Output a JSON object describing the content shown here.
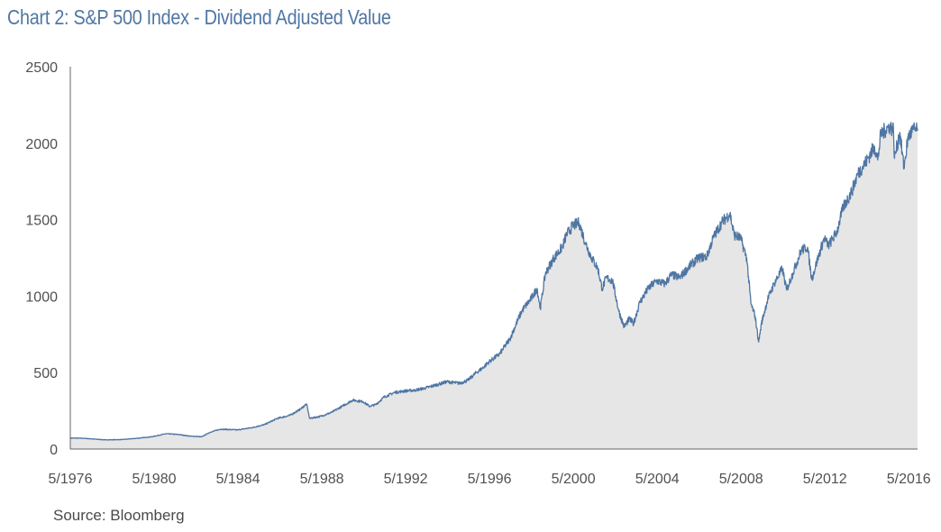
{
  "title": "Chart 2: S&P 500 Index - Dividend Adjusted Value",
  "source": "Source: Bloomberg",
  "colors": {
    "title": "#4f76a3",
    "line": "#4f76a3",
    "fill": "#e6e6e6",
    "axis": "#666666"
  },
  "chart_data": {
    "type": "area",
    "title": "Chart 2: S&P 500 Index - Dividend Adjusted Value",
    "xlabel": "",
    "ylabel": "",
    "ylim": [
      0,
      2500
    ],
    "xlim": [
      1976.33,
      2016.75
    ],
    "yticks": [
      0,
      500,
      1000,
      1500,
      2000,
      2500
    ],
    "xticks": [
      {
        "x": 1976.33,
        "label": "5/1976"
      },
      {
        "x": 1980.33,
        "label": "5/1980"
      },
      {
        "x": 1984.33,
        "label": "5/1984"
      },
      {
        "x": 1988.33,
        "label": "5/1988"
      },
      {
        "x": 1992.33,
        "label": "5/1992"
      },
      {
        "x": 1996.33,
        "label": "5/1996"
      },
      {
        "x": 2000.33,
        "label": "5/2000"
      },
      {
        "x": 2004.33,
        "label": "5/2004"
      },
      {
        "x": 2008.33,
        "label": "5/2008"
      },
      {
        "x": 2012.33,
        "label": "5/2012"
      },
      {
        "x": 2016.33,
        "label": "5/2016"
      }
    ],
    "grid": false,
    "legend": "none",
    "series": [
      {
        "points": [
          [
            1976.33,
            72
          ],
          [
            1977.0,
            70
          ],
          [
            1978.0,
            60
          ],
          [
            1978.8,
            62
          ],
          [
            1979.5,
            70
          ],
          [
            1980.2,
            80
          ],
          [
            1980.9,
            100
          ],
          [
            1981.5,
            95
          ],
          [
            1982.0,
            85
          ],
          [
            1982.6,
            80
          ],
          [
            1983.0,
            110
          ],
          [
            1983.5,
            130
          ],
          [
            1984.3,
            125
          ],
          [
            1985.0,
            140
          ],
          [
            1985.6,
            160
          ],
          [
            1986.2,
            200
          ],
          [
            1986.8,
            220
          ],
          [
            1987.3,
            260
          ],
          [
            1987.6,
            295
          ],
          [
            1987.75,
            200
          ],
          [
            1988.3,
            215
          ],
          [
            1988.8,
            240
          ],
          [
            1989.3,
            280
          ],
          [
            1989.8,
            320
          ],
          [
            1990.3,
            310
          ],
          [
            1990.6,
            280
          ],
          [
            1990.9,
            290
          ],
          [
            1991.3,
            340
          ],
          [
            1991.8,
            370
          ],
          [
            1992.3,
            380
          ],
          [
            1992.8,
            385
          ],
          [
            1993.3,
            400
          ],
          [
            1993.8,
            420
          ],
          [
            1994.3,
            440
          ],
          [
            1994.9,
            430
          ],
          [
            1995.3,
            450
          ],
          [
            1995.7,
            500
          ],
          [
            1996.0,
            530
          ],
          [
            1996.3,
            570
          ],
          [
            1996.8,
            620
          ],
          [
            1997.3,
            720
          ],
          [
            1997.7,
            850
          ],
          [
            1997.9,
            910
          ],
          [
            1998.3,
            980
          ],
          [
            1998.6,
            1050
          ],
          [
            1998.75,
            920
          ],
          [
            1999.0,
            1150
          ],
          [
            1999.4,
            1250
          ],
          [
            1999.8,
            1320
          ],
          [
            2000.0,
            1400
          ],
          [
            2000.3,
            1460
          ],
          [
            2000.6,
            1480
          ],
          [
            2000.9,
            1350
          ],
          [
            2001.2,
            1250
          ],
          [
            2001.5,
            1180
          ],
          [
            2001.7,
            1050
          ],
          [
            2001.9,
            1120
          ],
          [
            2002.2,
            1100
          ],
          [
            2002.5,
            900
          ],
          [
            2002.75,
            800
          ],
          [
            2003.0,
            850
          ],
          [
            2003.2,
            820
          ],
          [
            2003.5,
            960
          ],
          [
            2003.9,
            1050
          ],
          [
            2004.3,
            1100
          ],
          [
            2004.7,
            1080
          ],
          [
            2005.0,
            1140
          ],
          [
            2005.4,
            1120
          ],
          [
            2005.9,
            1200
          ],
          [
            2006.3,
            1250
          ],
          [
            2006.7,
            1260
          ],
          [
            2007.0,
            1380
          ],
          [
            2007.4,
            1480
          ],
          [
            2007.8,
            1540
          ],
          [
            2008.0,
            1400
          ],
          [
            2008.3,
            1380
          ],
          [
            2008.6,
            1250
          ],
          [
            2008.8,
            950
          ],
          [
            2009.0,
            870
          ],
          [
            2009.17,
            700
          ],
          [
            2009.3,
            820
          ],
          [
            2009.6,
            980
          ],
          [
            2009.9,
            1080
          ],
          [
            2010.3,
            1180
          ],
          [
            2010.5,
            1040
          ],
          [
            2010.8,
            1150
          ],
          [
            2011.2,
            1300
          ],
          [
            2011.5,
            1320
          ],
          [
            2011.7,
            1110
          ],
          [
            2012.0,
            1250
          ],
          [
            2012.3,
            1380
          ],
          [
            2012.5,
            1330
          ],
          [
            2012.9,
            1420
          ],
          [
            2013.2,
            1580
          ],
          [
            2013.6,
            1680
          ],
          [
            2013.9,
            1800
          ],
          [
            2014.3,
            1880
          ],
          [
            2014.7,
            1980
          ],
          [
            2014.85,
            1890
          ],
          [
            2015.0,
            2060
          ],
          [
            2015.4,
            2110
          ],
          [
            2015.6,
            2090
          ],
          [
            2015.65,
            1900
          ],
          [
            2015.9,
            2070
          ],
          [
            2016.1,
            1840
          ],
          [
            2016.3,
            2040
          ],
          [
            2016.55,
            2090
          ],
          [
            2016.75,
            2080
          ]
        ]
      }
    ]
  }
}
